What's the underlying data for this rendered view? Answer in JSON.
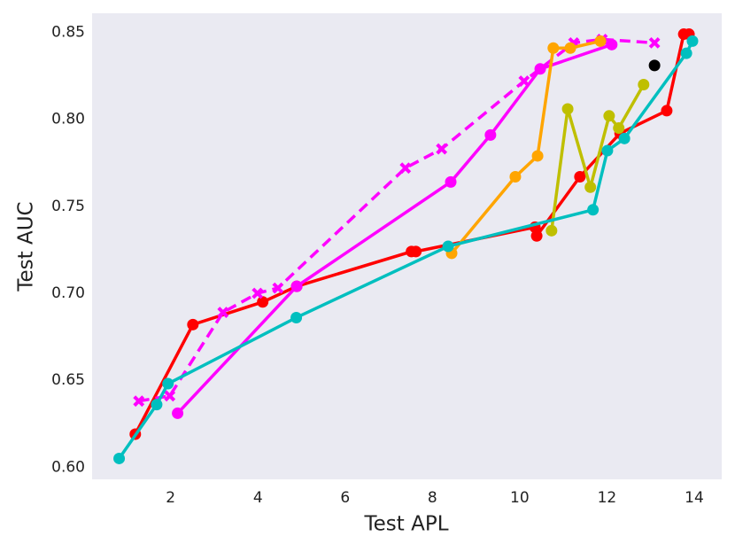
{
  "chart_data": {
    "type": "line",
    "x_label": "Test APL",
    "y_label": "Test AUC",
    "xlim": [
      0.2,
      14.63
    ],
    "ylim": [
      0.593,
      0.861
    ],
    "xticks": [
      2,
      4,
      6,
      8,
      10,
      12,
      14
    ],
    "yticks": [
      {
        "value": 0.6,
        "label": "0.60"
      },
      {
        "value": 0.65,
        "label": "0.65"
      },
      {
        "value": 0.7,
        "label": "0.70"
      },
      {
        "value": 0.75,
        "label": "0.75"
      },
      {
        "value": 0.8,
        "label": "0.80"
      },
      {
        "value": 0.85,
        "label": "0.85"
      }
    ],
    "grid": false,
    "background": "#eaeaf2",
    "series": [
      {
        "color": "#ff0000",
        "marker": "circle",
        "dashed": false,
        "x": [
          1.19,
          2.51,
          4.11,
          4.89,
          7.52,
          7.62,
          10.35,
          10.39,
          11.38,
          12.3,
          13.37,
          13.76,
          13.88
        ],
        "values": [
          0.619,
          0.682,
          0.695,
          0.704,
          0.724,
          0.724,
          0.738,
          0.733,
          0.767,
          0.792,
          0.805,
          0.849,
          0.849
        ]
      },
      {
        "color": "#ff00ff",
        "marker": "circle",
        "dashed": false,
        "x": [
          2.16,
          4.89,
          8.42,
          9.33,
          10.47,
          12.11
        ],
        "values": [
          0.631,
          0.704,
          0.764,
          0.791,
          0.829,
          0.843
        ]
      },
      {
        "color": "#ff00ff",
        "marker": "x",
        "dashed": true,
        "x": [
          1.27,
          1.98,
          3.2,
          3.99,
          4.46,
          7.38,
          8.21,
          10.1,
          11.24,
          11.89,
          13.09
        ],
        "values": [
          0.638,
          0.641,
          0.689,
          0.7,
          0.703,
          0.772,
          0.783,
          0.822,
          0.844,
          0.846,
          0.844
        ]
      },
      {
        "color": "#ffa500",
        "marker": "circle",
        "dashed": false,
        "x": [
          8.44,
          9.9,
          10.41,
          10.77,
          11.16,
          11.85
        ],
        "values": [
          0.723,
          0.767,
          0.779,
          0.841,
          0.841,
          0.845
        ]
      },
      {
        "color": "#bfbf00",
        "marker": "circle",
        "dashed": false,
        "x": [
          10.73,
          11.1,
          11.62,
          12.05,
          12.27,
          12.84
        ],
        "values": [
          0.736,
          0.806,
          0.761,
          0.802,
          0.795,
          0.82
        ]
      },
      {
        "color": "#00bfbf",
        "marker": "circle",
        "dashed": false,
        "x": [
          0.82,
          1.68,
          1.94,
          4.88,
          8.36,
          11.68,
          12.01,
          12.4,
          13.82,
          13.96
        ],
        "values": [
          0.605,
          0.636,
          0.648,
          0.686,
          0.727,
          0.748,
          0.782,
          0.789,
          0.838,
          0.845
        ]
      },
      {
        "color": "#000000",
        "marker": "circle",
        "dashed": false,
        "x": [
          13.09
        ],
        "values": [
          0.831
        ]
      }
    ]
  }
}
